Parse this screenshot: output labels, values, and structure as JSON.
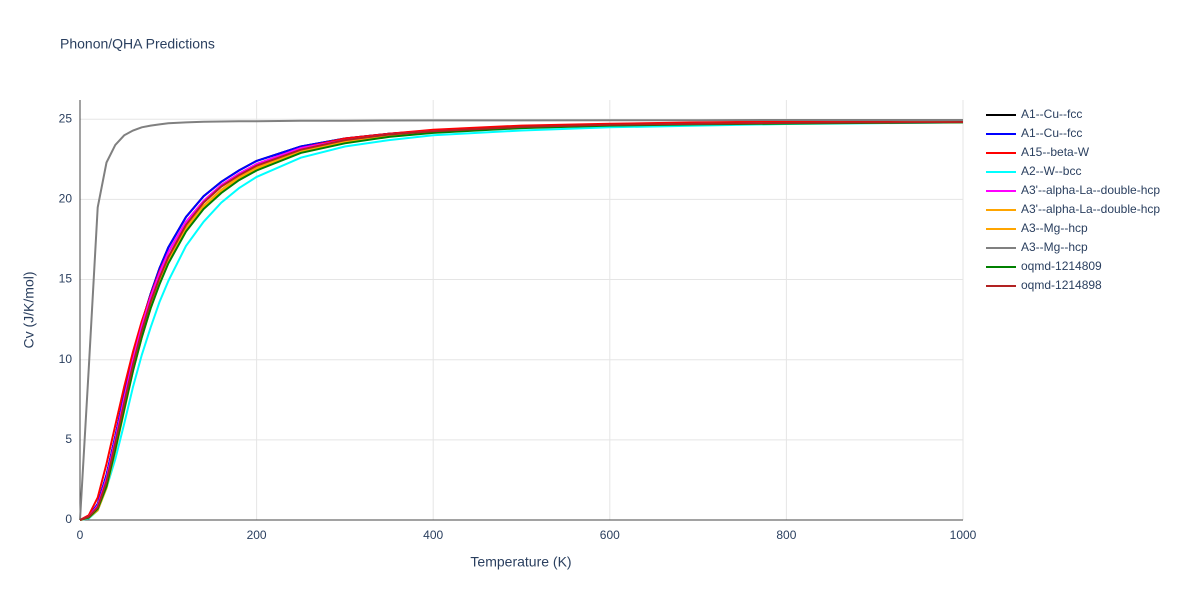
{
  "chart_data": {
    "type": "line",
    "title": "Phonon/QHA Predictions",
    "x_label": "Temperature (K)",
    "y_label": "Cv (J/K/mol)",
    "x": [
      0,
      10,
      20,
      30,
      40,
      50,
      60,
      70,
      80,
      90,
      100,
      120,
      140,
      160,
      180,
      200,
      250,
      300,
      350,
      400,
      500,
      600,
      700,
      800,
      900,
      1000
    ],
    "xlim": [
      0,
      1000
    ],
    "xticks": [
      0,
      200,
      400,
      600,
      800,
      1000
    ],
    "ylim": [
      0,
      26.2
    ],
    "yticks": [
      0,
      5,
      10,
      15,
      20,
      25
    ],
    "grid": true,
    "series": [
      {
        "name": "A1--Cu--fcc",
        "color": "#000000",
        "values": [
          0,
          0.2,
          1.0,
          2.8,
          5.2,
          7.8,
          10.2,
          12.3,
          14.1,
          15.7,
          17.0,
          18.9,
          20.2,
          21.1,
          21.8,
          22.4,
          23.3,
          23.8,
          24.1,
          24.3,
          24.5,
          24.65,
          24.72,
          24.77,
          24.8,
          24.83
        ]
      },
      {
        "name": "A1--Cu--fcc",
        "color": "#0000ff",
        "values": [
          0,
          0.2,
          1.0,
          2.8,
          5.2,
          7.8,
          10.2,
          12.3,
          14.1,
          15.7,
          17.0,
          18.9,
          20.2,
          21.1,
          21.8,
          22.4,
          23.3,
          23.8,
          24.1,
          24.3,
          24.5,
          24.65,
          24.72,
          24.77,
          24.8,
          24.83
        ]
      },
      {
        "name": "A15--beta-W",
        "color": "#ff0000",
        "values": [
          0,
          0.3,
          1.4,
          3.5,
          5.9,
          8.3,
          10.5,
          12.4,
          14.0,
          15.5,
          16.7,
          18.6,
          19.9,
          20.9,
          21.6,
          22.2,
          23.2,
          23.8,
          24.1,
          24.35,
          24.6,
          24.72,
          24.8,
          24.85,
          24.88,
          24.9
        ]
      },
      {
        "name": "A2--W--bcc",
        "color": "#00ffff",
        "values": [
          0,
          0.1,
          0.6,
          2.0,
          3.8,
          6.0,
          8.3,
          10.3,
          12.0,
          13.6,
          14.9,
          17.1,
          18.6,
          19.8,
          20.7,
          21.4,
          22.6,
          23.3,
          23.7,
          24.0,
          24.3,
          24.5,
          24.6,
          24.7,
          24.75,
          24.8
        ]
      },
      {
        "name": "A3'--alpha-La--double-hcp",
        "color": "#ff00ff",
        "values": [
          0,
          0.2,
          0.9,
          2.6,
          5.0,
          7.6,
          10.0,
          12.1,
          13.9,
          15.4,
          16.7,
          18.6,
          19.9,
          20.9,
          21.6,
          22.2,
          23.2,
          23.7,
          24.05,
          24.25,
          24.5,
          24.63,
          24.71,
          24.76,
          24.79,
          24.82
        ]
      },
      {
        "name": "A3'--alpha-La--double-hcp",
        "color": "#ffa500",
        "values": [
          0,
          0.15,
          0.7,
          2.2,
          4.5,
          7.0,
          9.5,
          11.6,
          13.4,
          14.9,
          16.2,
          18.2,
          19.6,
          20.6,
          21.4,
          22.0,
          23.0,
          23.6,
          24.0,
          24.2,
          24.5,
          24.62,
          24.7,
          24.75,
          24.79,
          24.82
        ]
      },
      {
        "name": "A3--Mg--hcp",
        "color": "#ffa500",
        "values": [
          0,
          0.15,
          0.6,
          2.0,
          4.3,
          6.8,
          9.3,
          11.4,
          13.2,
          14.8,
          16.1,
          18.1,
          19.5,
          20.5,
          21.3,
          21.9,
          23.0,
          23.6,
          23.95,
          24.2,
          24.5,
          24.62,
          24.7,
          24.75,
          24.79,
          24.82
        ]
      },
      {
        "name": "A3--Mg--hcp",
        "color": "#808080",
        "values": [
          0,
          9.5,
          19.5,
          22.3,
          23.4,
          24.0,
          24.3,
          24.5,
          24.6,
          24.68,
          24.75,
          24.8,
          24.84,
          24.86,
          24.87,
          24.88,
          24.9,
          24.91,
          24.92,
          24.93,
          24.93,
          24.94,
          24.94,
          24.95,
          24.95,
          24.95
        ]
      },
      {
        "name": "oqmd-1214809",
        "color": "#008000",
        "values": [
          0,
          0.15,
          0.7,
          2.1,
          4.4,
          6.9,
          9.3,
          11.4,
          13.2,
          14.7,
          16.0,
          18.0,
          19.4,
          20.4,
          21.2,
          21.8,
          22.9,
          23.5,
          23.9,
          24.15,
          24.45,
          24.6,
          24.68,
          24.73,
          24.77,
          24.8
        ]
      },
      {
        "name": "oqmd-1214898",
        "color": "#b22222",
        "values": [
          0,
          0.2,
          0.8,
          2.4,
          4.8,
          7.3,
          9.7,
          11.8,
          13.6,
          15.1,
          16.4,
          18.4,
          19.8,
          20.8,
          21.5,
          22.1,
          23.1,
          23.7,
          24.05,
          24.25,
          24.52,
          24.65,
          24.72,
          24.77,
          24.8,
          24.83
        ]
      }
    ]
  }
}
